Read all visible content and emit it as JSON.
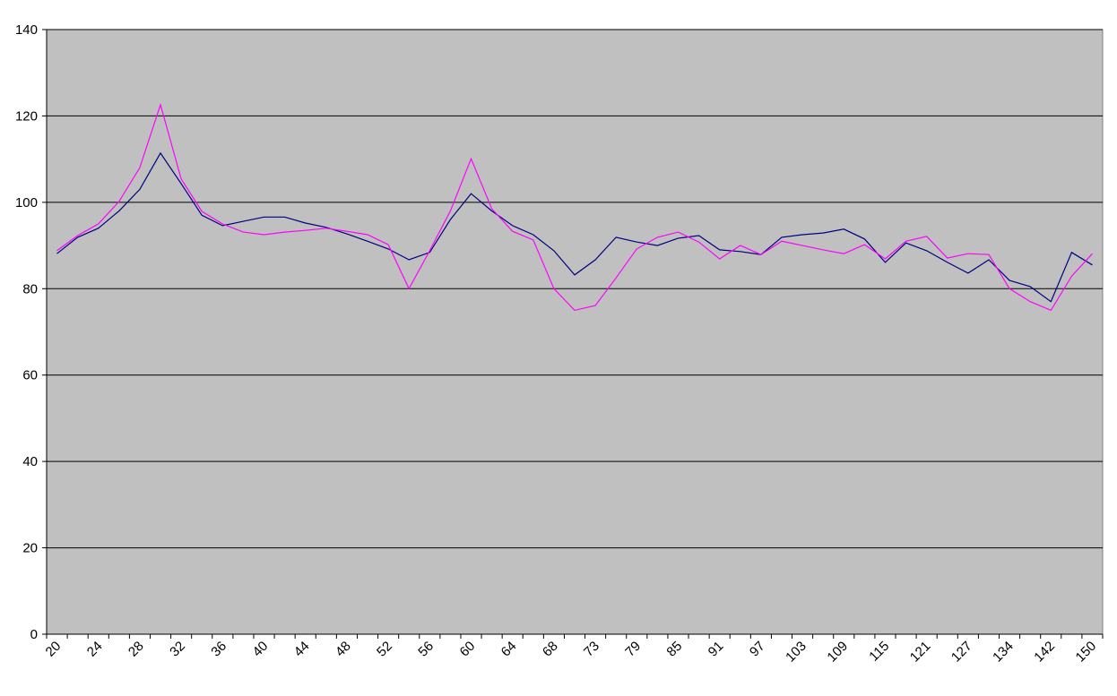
{
  "chart_data": {
    "type": "line",
    "categories": [
      "20",
      null,
      "24",
      null,
      "28",
      null,
      "32",
      null,
      "36",
      null,
      "40",
      null,
      "44",
      null,
      "48",
      null,
      "52",
      null,
      "56",
      null,
      "60",
      null,
      "64",
      null,
      "68",
      null,
      "73",
      null,
      "79",
      null,
      "85",
      null,
      "91",
      null,
      "97",
      null,
      "103",
      null,
      "109",
      null,
      "115",
      null,
      "121",
      null,
      "127",
      null,
      "134",
      null,
      "142",
      null,
      "150"
    ],
    "series": [
      {
        "color": "#000080",
        "values": [
          88.1,
          91.9,
          94,
          98,
          103,
          111.4,
          104.3,
          97,
          94.6,
          95.6,
          96.6,
          96.6,
          95.2,
          94.2,
          92.7,
          91,
          89.2,
          86.7,
          88.4,
          96,
          102,
          98,
          94.6,
          92.5,
          88.8,
          83.2,
          86.7,
          91.9,
          90.8,
          90,
          91.7,
          92.3,
          89,
          88.6,
          87.9,
          91.9,
          92.5,
          92.9,
          93.8,
          91.5,
          86.1,
          90.6,
          88.8,
          86.1,
          83.6,
          86.7,
          81.9,
          80.5,
          77,
          88.4,
          85.5
        ]
      },
      {
        "color": "#ff00ff",
        "values": [
          88.8,
          92.3,
          95,
          100.2,
          108,
          122.6,
          105.4,
          97.9,
          95,
          93.1,
          92.5,
          93.1,
          93.5,
          94,
          93.3,
          92.5,
          90.2,
          80,
          88.8,
          98,
          110.1,
          98.5,
          93.3,
          91.3,
          80,
          75,
          76.1,
          82.5,
          89.2,
          91.9,
          93.1,
          90.8,
          86.9,
          90,
          87.9,
          91,
          90,
          89,
          88.1,
          90.2,
          86.9,
          91,
          92.1,
          87.1,
          88.1,
          87.9,
          80,
          77,
          75,
          82.9,
          88.1
        ]
      }
    ],
    "ylim": [
      0,
      140
    ],
    "yticks": [
      0,
      20,
      40,
      60,
      80,
      100,
      120,
      140
    ],
    "grid": true,
    "plot_background": "#c0c0c0"
  }
}
